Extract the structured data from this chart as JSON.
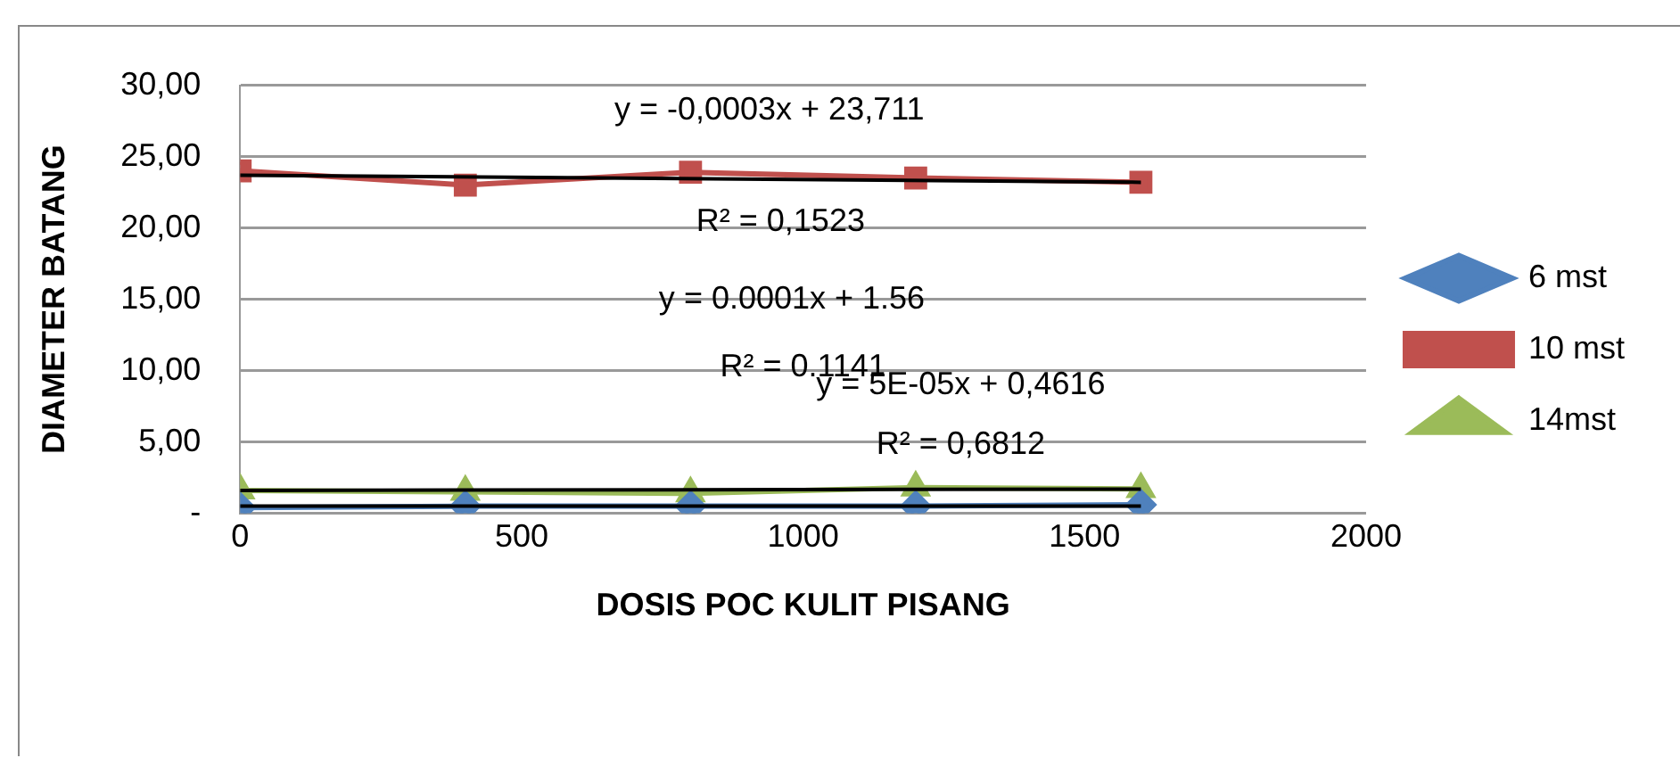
{
  "chart_data": {
    "type": "line",
    "xlabel": "DOSIS POC KULIT PISANG",
    "ylabel": "DIAMETER BATANG",
    "x": [
      0,
      400,
      800,
      1200,
      1600
    ],
    "series": [
      {
        "name": "6 mst",
        "color": "#4f81bd",
        "marker": "diamond",
        "values": [
          0.4,
          0.5,
          0.5,
          0.5,
          0.6
        ]
      },
      {
        "name": "10 mst",
        "color": "#c0504d",
        "marker": "square",
        "values": [
          24.0,
          23.0,
          23.9,
          23.5,
          23.2
        ]
      },
      {
        "name": "14mst",
        "color": "#9bbb59",
        "marker": "triangle",
        "values": [
          1.6,
          1.5,
          1.4,
          1.8,
          1.7
        ]
      },
      {
        "type": "line",
        "color": "#000000",
        "marker": "none",
        "values": [
          0.5,
          null,
          null,
          null,
          0.5
        ]
      },
      {
        "type": "line",
        "color": "#000000",
        "marker": "none",
        "values": [
          23.7,
          null,
          null,
          null,
          23.2
        ]
      },
      {
        "type": "line",
        "color": "#000000",
        "marker": "none",
        "values": [
          1.6,
          null,
          null,
          null,
          1.7
        ]
      }
    ],
    "xlim": [
      0,
      2000
    ],
    "xticks": [
      0,
      500,
      1000,
      1500,
      2000
    ],
    "ylim": [
      0,
      30
    ],
    "yticks": [
      {
        "value": 0,
        "label": "-"
      },
      {
        "value": 5,
        "label": "5,00"
      },
      {
        "value": 10,
        "label": "10,00"
      },
      {
        "value": 15,
        "label": "15,00"
      },
      {
        "value": 20,
        "label": "20,00"
      },
      {
        "value": 25,
        "label": "25,00"
      },
      {
        "value": 30,
        "label": "30,00"
      }
    ],
    "grid": "y",
    "legend": "right",
    "annotations": [
      "y = -0,0003x + 23,711",
      "R² = 0,1523",
      "y = 0.0001x + 1.56",
      "R² = 0.1141",
      "y = 5E-05x + 0,4616",
      "R² = 0,6812"
    ]
  }
}
